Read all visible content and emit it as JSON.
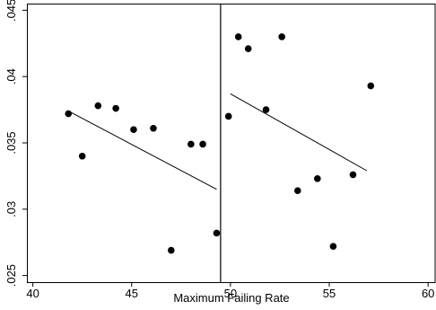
{
  "chart_data": {
    "type": "scatter",
    "title": "",
    "xlabel": "Maximum Failing Rate",
    "ylabel": "",
    "xlim": [
      39.7,
      60.4
    ],
    "ylim": [
      0.0245,
      0.0455
    ],
    "x_ticks": [
      40,
      45,
      50,
      55,
      60
    ],
    "x_tick_labels": [
      "40",
      "45",
      "50",
      "55",
      "60"
    ],
    "y_ticks": [
      0.025,
      0.03,
      0.035,
      0.04,
      0.045
    ],
    "y_tick_labels": [
      ".025",
      ".03",
      ".035",
      ".04",
      ".045"
    ],
    "grid": false,
    "legend": "none",
    "cutoff_line_x": 49.5,
    "series": [
      {
        "points": [
          {
            "x": 41.8,
            "y": 0.0372
          },
          {
            "x": 42.5,
            "y": 0.034
          },
          {
            "x": 43.3,
            "y": 0.0378
          },
          {
            "x": 44.2,
            "y": 0.0376
          },
          {
            "x": 45.1,
            "y": 0.036
          },
          {
            "x": 46.1,
            "y": 0.0361
          },
          {
            "x": 47.0,
            "y": 0.0269
          },
          {
            "x": 48.0,
            "y": 0.0349
          },
          {
            "x": 48.6,
            "y": 0.0349
          },
          {
            "x": 49.3,
            "y": 0.0282
          },
          {
            "x": 49.9,
            "y": 0.037
          },
          {
            "x": 50.4,
            "y": 0.043
          },
          {
            "x": 50.9,
            "y": 0.0421
          },
          {
            "x": 51.8,
            "y": 0.0375
          },
          {
            "x": 52.6,
            "y": 0.043
          },
          {
            "x": 53.4,
            "y": 0.0314
          },
          {
            "x": 54.4,
            "y": 0.0323
          },
          {
            "x": 55.2,
            "y": 0.0272
          },
          {
            "x": 56.2,
            "y": 0.0326
          },
          {
            "x": 57.1,
            "y": 0.0393
          }
        ]
      }
    ],
    "fit_lines": [
      {
        "x": [
          41.8,
          49.3
        ],
        "y": [
          0.0374,
          0.0315
        ]
      },
      {
        "x": [
          50.0,
          56.9
        ],
        "y": [
          0.0387,
          0.0329
        ]
      }
    ]
  }
}
